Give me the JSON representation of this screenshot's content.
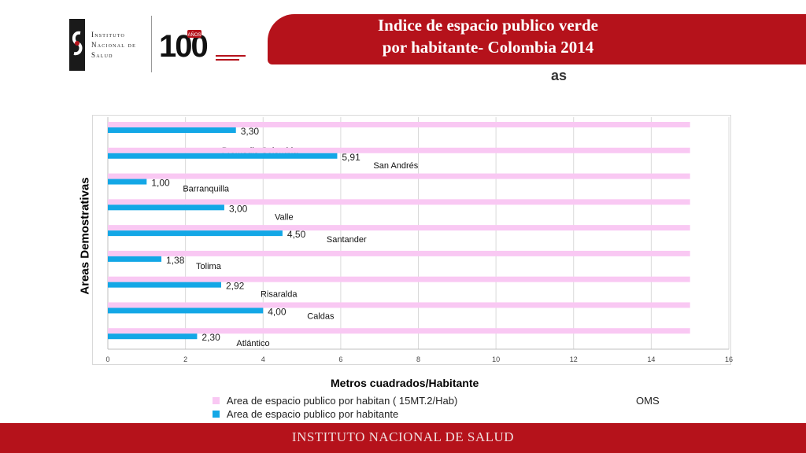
{
  "header": {
    "title_line1": "Indice de espacio publico verde",
    "title_line2": "por habitante- Colombia 2014",
    "stray_text": "as"
  },
  "logo": {
    "institute_lines": [
      "Instituto",
      "Nacional de",
      "Salud"
    ],
    "anniversary": "100",
    "anniversary_badge": "AÑOS"
  },
  "footer": {
    "text": "INSTITUTO NACIONAL  DE  SALUD"
  },
  "colors": {
    "brand_red": "#b5121b",
    "oms_series": "#f9c8f3",
    "habitante_series": "#13a7e6"
  },
  "chart_data": {
    "type": "bar",
    "orientation": "horizontal",
    "categories": [
      "Promedio Colombia",
      "San Andrés",
      "Barranquilla",
      "Valle",
      "Santander",
      "Tolima",
      "Risaralda",
      "Caldas",
      "Atlántico"
    ],
    "series": [
      {
        "name": "Area de espacio publico por habitan ( 15MT.2/Hab)",
        "values": [
          15,
          15,
          15,
          15,
          15,
          15,
          15,
          15,
          15
        ]
      },
      {
        "name": "Area de espacio publico por habitante",
        "values": [
          3.3,
          5.91,
          1.0,
          3.0,
          4.5,
          1.38,
          2.92,
          4.0,
          2.3
        ]
      }
    ],
    "data_labels": [
      "3,30",
      "5,91",
      "1,00",
      "3,00",
      "4,50",
      "1,38",
      "2,92",
      "4,00",
      "2,30"
    ],
    "xlabel": "Metros cuadrados/Habitante",
    "ylabel": "Areas  Demostrativas",
    "xlim": [
      0,
      16
    ],
    "xticks": [
      "0",
      "2",
      "4",
      "6",
      "8",
      "10",
      "12",
      "14",
      "16"
    ],
    "grid": true,
    "legend_position": "bottom",
    "legend_note": "OMS"
  }
}
